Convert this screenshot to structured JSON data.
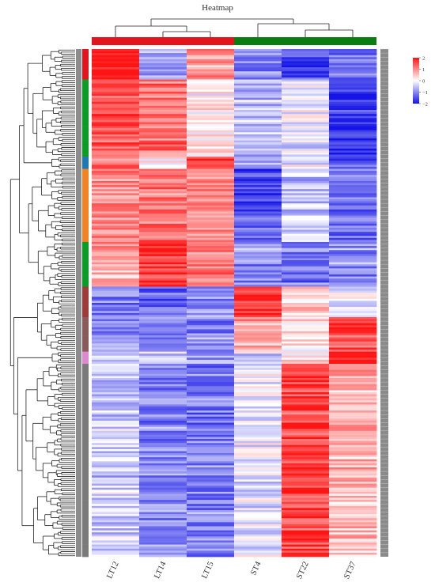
{
  "chart_data": {
    "type": "heatmap",
    "title": "Heatmap",
    "columns": [
      "LT12",
      "LT14",
      "LT15",
      "ST4",
      "ST22",
      "ST37"
    ],
    "column_groups": [
      {
        "color": "#e4141c",
        "members": [
          "LT12",
          "LT14",
          "LT15"
        ]
      },
      {
        "color": "#0a7d10",
        "members": [
          "ST4",
          "ST22",
          "ST37"
        ]
      }
    ],
    "color_scale": {
      "min": -2,
      "max": 2,
      "ticks": [
        {
          "value": 2,
          "label": "2"
        },
        {
          "value": 1,
          "label": "1"
        },
        {
          "value": 0,
          "label": "0"
        },
        {
          "value": -1,
          "label": "−1"
        },
        {
          "value": -2,
          "label": "−2"
        }
      ],
      "low_color": "#1414e6",
      "mid_color": "#ffffff",
      "high_color": "#ff1414"
    },
    "row_count": 250,
    "row_label_note": "row labels unreadable",
    "row_clusters": [
      {
        "color": "#e4141c",
        "rows": 15,
        "values": [
          2.0,
          -0.8,
          0.8,
          -1.0,
          -1.6,
          -1.2
        ]
      },
      {
        "color": "#0a9d26",
        "rows": 38,
        "values": [
          1.5,
          1.2,
          0.2,
          -0.6,
          -0.2,
          -1.8
        ]
      },
      {
        "color": "#1f78b4",
        "rows": 6,
        "values": [
          1.2,
          0.2,
          2.0,
          -0.8,
          -0.2,
          -1.4
        ]
      },
      {
        "color": "#f58220",
        "rows": 36,
        "values": [
          1.0,
          1.2,
          0.9,
          -1.5,
          -0.5,
          -1.2
        ]
      },
      {
        "color": "#0a9d26",
        "rows": 22,
        "values": [
          0.8,
          1.8,
          1.2,
          -0.9,
          -1.1,
          -0.9
        ]
      },
      {
        "color": "#a03a3a",
        "rows": 15,
        "values": [
          -1.1,
          -1.4,
          -0.9,
          1.8,
          0.4,
          -0.2
        ]
      },
      {
        "color": "#8a5a5a",
        "rows": 17,
        "values": [
          -0.9,
          -1.2,
          -1.0,
          0.8,
          0.2,
          1.5
        ]
      },
      {
        "color": "#dd88d0",
        "rows": 6,
        "values": [
          -0.5,
          -0.3,
          -0.8,
          -0.3,
          0.3,
          2.0
        ]
      },
      {
        "color": "#7a7a7a",
        "rows": 95,
        "values": [
          -0.4,
          -1.0,
          -1.1,
          -0.2,
          1.6,
          0.6
        ]
      }
    ]
  }
}
